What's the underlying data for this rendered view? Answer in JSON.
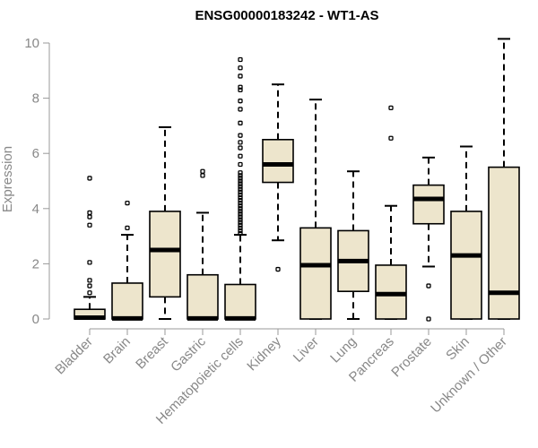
{
  "chart_data": {
    "type": "boxplot",
    "title": "ENSG00000183242 - WT1-AS",
    "ylabel": "Expression",
    "xlabel": "",
    "ylim": [
      0,
      10
    ],
    "yticks": [
      0,
      2,
      4,
      6,
      8,
      10
    ],
    "box_fill": "#ede5cc",
    "categories": [
      "Bladder",
      "Brain",
      "Breast",
      "Gastric",
      "Hematopoietic cells",
      "Kidney",
      "Liver",
      "Lung",
      "Pancreas",
      "Prostate",
      "Skin",
      "Unknown / Other"
    ],
    "boxes": [
      {
        "name": "Bladder",
        "whisker_low": 0,
        "q1": 0,
        "median": 0.05,
        "q3": 0.35,
        "whisker_high": 0.8,
        "outliers": [
          0.95,
          1.2,
          1.4,
          2.05,
          3.4,
          3.7,
          3.85,
          5.1
        ]
      },
      {
        "name": "Brain",
        "whisker_low": 0,
        "q1": 0,
        "median": 0.02,
        "q3": 1.3,
        "whisker_high": 3.05,
        "outliers": [
          3.3,
          4.2
        ]
      },
      {
        "name": "Breast",
        "whisker_low": 0,
        "q1": 0.8,
        "median": 2.5,
        "q3": 3.9,
        "whisker_high": 6.95,
        "outliers": []
      },
      {
        "name": "Gastric",
        "whisker_low": 0,
        "q1": 0,
        "median": 0.02,
        "q3": 1.6,
        "whisker_high": 3.85,
        "outliers": [
          5.2,
          5.35
        ]
      },
      {
        "name": "Hematopoietic cells",
        "whisker_low": 0,
        "q1": 0,
        "median": 0.02,
        "q3": 1.25,
        "whisker_high": 3.05,
        "outliers": [
          3.1,
          3.2,
          3.3,
          3.4,
          3.5,
          3.6,
          3.7,
          3.8,
          3.9,
          4.0,
          4.1,
          4.2,
          4.3,
          4.4,
          4.5,
          4.6,
          4.7,
          4.8,
          4.9,
          5.0,
          5.1,
          5.2,
          5.3,
          5.6,
          5.9,
          6.2,
          6.4,
          6.65,
          7.1,
          7.6,
          7.9,
          8.3,
          8.4,
          8.8,
          9.1,
          9.4
        ]
      },
      {
        "name": "Kidney",
        "whisker_low": 2.85,
        "q1": 4.95,
        "median": 5.6,
        "q3": 6.5,
        "whisker_high": 8.5,
        "outliers": [
          1.8
        ]
      },
      {
        "name": "Liver",
        "whisker_low": 0,
        "q1": 0,
        "median": 1.95,
        "q3": 3.3,
        "whisker_high": 7.95,
        "outliers": []
      },
      {
        "name": "Lung",
        "whisker_low": 0,
        "q1": 1.0,
        "median": 2.1,
        "q3": 3.2,
        "whisker_high": 5.35,
        "outliers": []
      },
      {
        "name": "Pancreas",
        "whisker_low": 0,
        "q1": 0,
        "median": 0.9,
        "q3": 1.95,
        "whisker_high": 4.1,
        "outliers": [
          6.55,
          7.65
        ]
      },
      {
        "name": "Prostate",
        "whisker_low": 1.9,
        "q1": 3.45,
        "median": 4.35,
        "q3": 4.85,
        "whisker_high": 5.85,
        "outliers": [
          1.2,
          0.0
        ]
      },
      {
        "name": "Skin",
        "whisker_low": 0,
        "q1": 0,
        "median": 2.3,
        "q3": 3.9,
        "whisker_high": 6.25,
        "outliers": []
      },
      {
        "name": "Unknown / Other",
        "whisker_low": 0,
        "q1": 0,
        "median": 0.95,
        "q3": 5.5,
        "whisker_high": 10.15,
        "outliers": []
      }
    ]
  }
}
